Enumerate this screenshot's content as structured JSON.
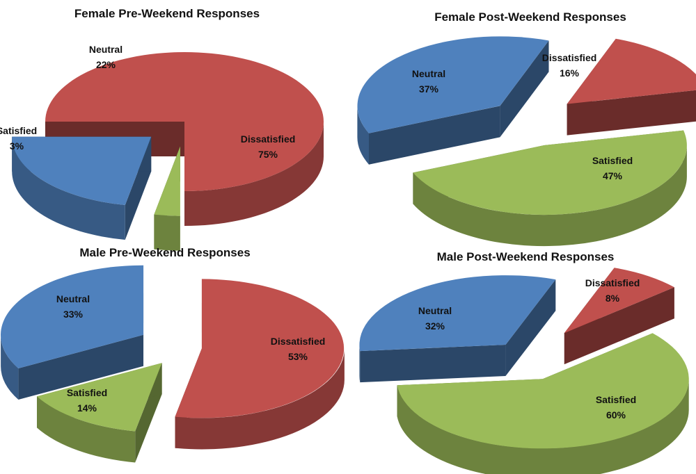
{
  "colors": {
    "Dissatisfied": "#C0504D",
    "Neutral": "#4F81BD",
    "Satisfied": "#9BBB59"
  },
  "chart_data": [
    {
      "type": "pie",
      "title": "Female Pre-Weekend Responses",
      "slices": [
        {
          "label": "Dissatisfied",
          "value": 75,
          "display": "75%"
        },
        {
          "label": "Satisfied",
          "value": 3,
          "display": "3%"
        },
        {
          "label": "Neutral",
          "value": 22,
          "display": "22%"
        }
      ]
    },
    {
      "type": "pie",
      "title": "Female Post-Weekend Responses",
      "slices": [
        {
          "label": "Dissatisfied",
          "value": 16,
          "display": "16%"
        },
        {
          "label": "Satisfied",
          "value": 47,
          "display": "47%"
        },
        {
          "label": "Neutral",
          "value": 37,
          "display": "37%"
        }
      ]
    },
    {
      "type": "pie",
      "title": "Male Pre-Weekend Responses",
      "slices": [
        {
          "label": "Dissatisfied",
          "value": 53,
          "display": "53%"
        },
        {
          "label": "Satisfied",
          "value": 14,
          "display": "14%"
        },
        {
          "label": "Neutral",
          "value": 33,
          "display": "33%"
        }
      ]
    },
    {
      "type": "pie",
      "title": "Male Post-Weekend Responses",
      "slices": [
        {
          "label": "Dissatisfied",
          "value": 8,
          "display": "8%"
        },
        {
          "label": "Satisfied",
          "value": 60,
          "display": "60%"
        },
        {
          "label": "Neutral",
          "value": 32,
          "display": "32%"
        }
      ]
    }
  ]
}
